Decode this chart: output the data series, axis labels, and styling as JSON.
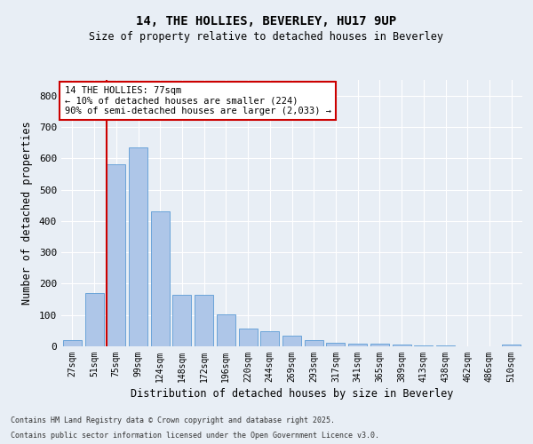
{
  "title1": "14, THE HOLLIES, BEVERLEY, HU17 9UP",
  "title2": "Size of property relative to detached houses in Beverley",
  "xlabel": "Distribution of detached houses by size in Beverley",
  "ylabel": "Number of detached properties",
  "categories": [
    "27sqm",
    "51sqm",
    "75sqm",
    "99sqm",
    "124sqm",
    "148sqm",
    "172sqm",
    "196sqm",
    "220sqm",
    "244sqm",
    "269sqm",
    "293sqm",
    "317sqm",
    "341sqm",
    "365sqm",
    "389sqm",
    "413sqm",
    "438sqm",
    "462sqm",
    "486sqm",
    "510sqm"
  ],
  "values": [
    20,
    170,
    580,
    635,
    430,
    165,
    165,
    103,
    57,
    47,
    35,
    20,
    12,
    9,
    8,
    5,
    3,
    2,
    1,
    1,
    5
  ],
  "bar_color": "#aec6e8",
  "bar_edge_color": "#5b9bd5",
  "vline_color": "#cc0000",
  "annotation_title": "14 THE HOLLIES: 77sqm",
  "annotation_line1": "← 10% of detached houses are smaller (224)",
  "annotation_line2": "90% of semi-detached houses are larger (2,033) →",
  "annotation_box_color": "#ffffff",
  "annotation_box_edge": "#cc0000",
  "ylim": [
    0,
    850
  ],
  "yticks": [
    0,
    100,
    200,
    300,
    400,
    500,
    600,
    700,
    800
  ],
  "footer1": "Contains HM Land Registry data © Crown copyright and database right 2025.",
  "footer2": "Contains public sector information licensed under the Open Government Licence v3.0.",
  "bg_color": "#e8eef5",
  "plot_bg_color": "#e8eef5"
}
